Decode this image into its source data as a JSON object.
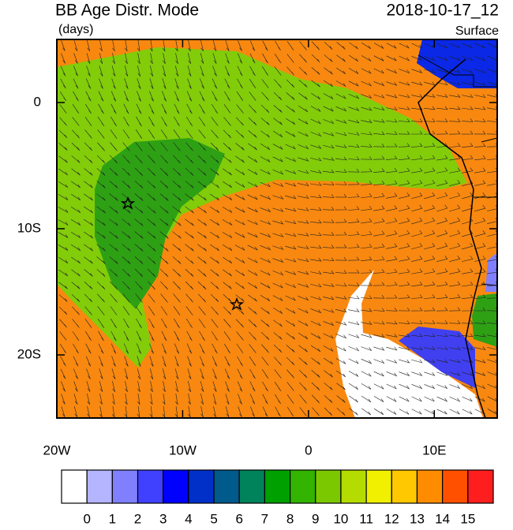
{
  "chart_data": {
    "type": "map",
    "title": "BB Age Distr. Mode",
    "units": "(days)",
    "date": "2018-10-17_12",
    "level": "Surface",
    "xlim": [
      -20,
      15
    ],
    "ylim": [
      -25,
      5
    ],
    "xticks": [
      {
        "value": -20,
        "label": "20W"
      },
      {
        "value": -10,
        "label": "10W"
      },
      0,
      {
        "value": 10,
        "label": "10E"
      }
    ],
    "yticks": [
      0,
      {
        "value": -10,
        "label": "10S"
      },
      {
        "value": -20,
        "label": "20S"
      }
    ],
    "colorbar": {
      "levels": [
        0,
        1,
        2,
        3,
        4,
        5,
        6,
        7,
        8,
        9,
        10,
        11,
        12,
        13,
        14,
        15
      ],
      "colors": [
        "#ffffff",
        "#b4b4ff",
        "#8080ff",
        "#4040ff",
        "#0000ff",
        "#0030c8",
        "#005a8c",
        "#00825a",
        "#00a000",
        "#32b400",
        "#7cc800",
        "#b4dc00",
        "#f0f000",
        "#ffc800",
        "#ff8c00",
        "#ff5000",
        "#ff1e1e"
      ]
    }
  }
}
